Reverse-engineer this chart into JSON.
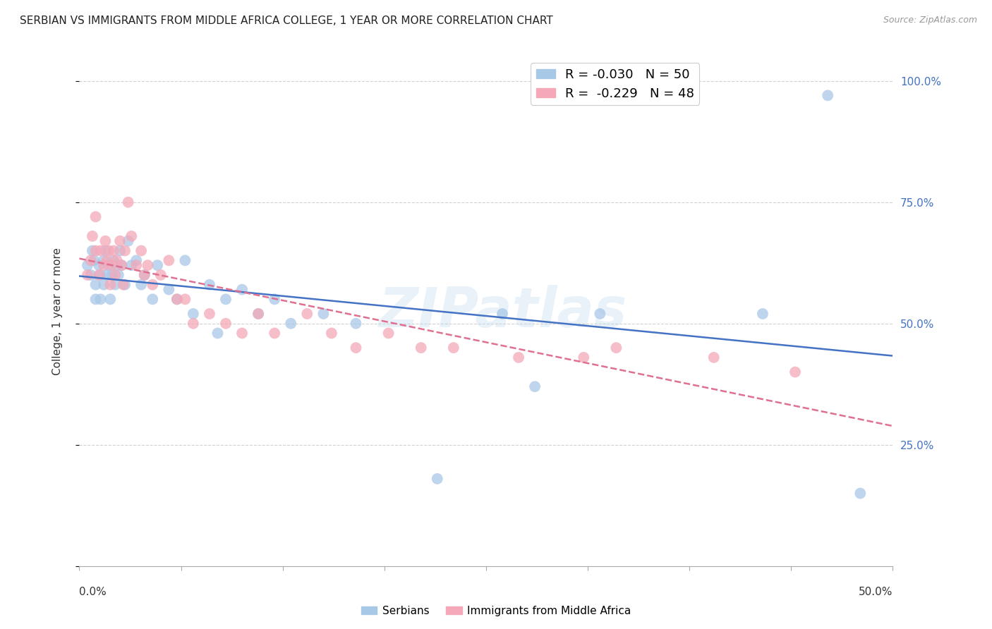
{
  "title": "SERBIAN VS IMMIGRANTS FROM MIDDLE AFRICA COLLEGE, 1 YEAR OR MORE CORRELATION CHART",
  "source": "Source: ZipAtlas.com",
  "ylabel": "College, 1 year or more",
  "xlim": [
    0.0,
    0.5
  ],
  "ylim": [
    0.0,
    1.05
  ],
  "ytick_positions": [
    0.0,
    0.25,
    0.5,
    0.75,
    1.0
  ],
  "ytick_labels": [
    "",
    "25.0%",
    "50.0%",
    "75.0%",
    "100.0%"
  ],
  "xtick_positions": [
    0.0,
    0.0625,
    0.125,
    0.1875,
    0.25,
    0.3125,
    0.375,
    0.4375,
    0.5
  ],
  "watermark": "ZIPatlas",
  "grid_color": "#cccccc",
  "background_color": "#ffffff",
  "title_fontsize": 11,
  "series": [
    {
      "name": "Serbians",
      "color": "#a8c8e8",
      "trend_color": "#4472c4",
      "trend_style": "solid",
      "x": [
        0.005,
        0.007,
        0.008,
        0.009,
        0.01,
        0.01,
        0.012,
        0.013,
        0.013,
        0.015,
        0.015,
        0.016,
        0.017,
        0.018,
        0.019,
        0.02,
        0.021,
        0.022,
        0.023,
        0.024,
        0.025,
        0.026,
        0.028,
        0.03,
        0.032,
        0.035,
        0.038,
        0.04,
        0.045,
        0.048,
        0.055,
        0.06,
        0.065,
        0.07,
        0.08,
        0.085,
        0.09,
        0.1,
        0.11,
        0.12,
        0.13,
        0.15,
        0.17,
        0.22,
        0.26,
        0.28,
        0.32,
        0.42,
        0.46,
        0.48
      ],
      "y": [
        0.62,
        0.6,
        0.65,
        0.63,
        0.58,
        0.55,
        0.62,
        0.6,
        0.55,
        0.63,
        0.58,
        0.65,
        0.6,
        0.62,
        0.55,
        0.6,
        0.63,
        0.58,
        0.62,
        0.6,
        0.65,
        0.62,
        0.58,
        0.67,
        0.62,
        0.63,
        0.58,
        0.6,
        0.55,
        0.62,
        0.57,
        0.55,
        0.63,
        0.52,
        0.58,
        0.48,
        0.55,
        0.57,
        0.52,
        0.55,
        0.5,
        0.52,
        0.5,
        0.18,
        0.52,
        0.37,
        0.52,
        0.52,
        0.97,
        0.15
      ]
    },
    {
      "name": "Immigrants from Middle Africa",
      "color": "#f4a8b8",
      "trend_color": "#e07090",
      "trend_style": "dashed",
      "x": [
        0.005,
        0.007,
        0.008,
        0.01,
        0.01,
        0.012,
        0.013,
        0.015,
        0.016,
        0.017,
        0.018,
        0.019,
        0.02,
        0.021,
        0.022,
        0.023,
        0.025,
        0.026,
        0.027,
        0.028,
        0.03,
        0.032,
        0.035,
        0.038,
        0.04,
        0.042,
        0.045,
        0.05,
        0.055,
        0.06,
        0.065,
        0.07,
        0.08,
        0.09,
        0.1,
        0.11,
        0.12,
        0.14,
        0.155,
        0.17,
        0.19,
        0.21,
        0.23,
        0.27,
        0.31,
        0.33,
        0.39,
        0.44
      ],
      "y": [
        0.6,
        0.63,
        0.68,
        0.65,
        0.72,
        0.6,
        0.65,
        0.62,
        0.67,
        0.63,
        0.65,
        0.58,
        0.62,
        0.65,
        0.6,
        0.63,
        0.67,
        0.62,
        0.58,
        0.65,
        0.75,
        0.68,
        0.62,
        0.65,
        0.6,
        0.62,
        0.58,
        0.6,
        0.63,
        0.55,
        0.55,
        0.5,
        0.52,
        0.5,
        0.48,
        0.52,
        0.48,
        0.52,
        0.48,
        0.45,
        0.48,
        0.45,
        0.45,
        0.43,
        0.43,
        0.45,
        0.43,
        0.4
      ]
    }
  ]
}
